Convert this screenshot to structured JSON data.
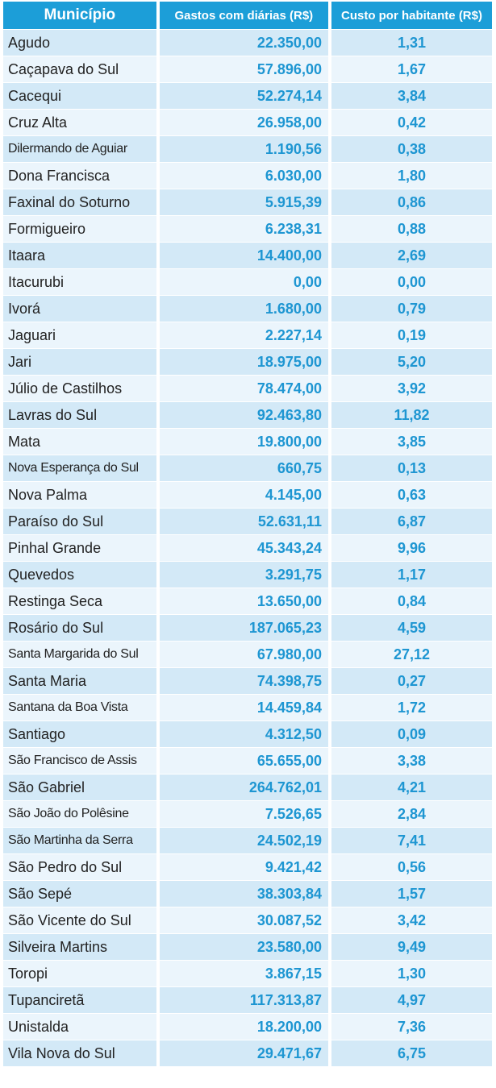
{
  "header": {
    "municipio": "Município",
    "gastos": "Gastos com diárias (R$)",
    "custo": "Custo por habitante (R$)"
  },
  "rows": [
    {
      "name": "Agudo",
      "spend": "22.350,00",
      "cost": "1,31"
    },
    {
      "name": "Caçapava do Sul",
      "spend": "57.896,00",
      "cost": "1,67"
    },
    {
      "name": "Cacequi",
      "spend": "52.274,14",
      "cost": "3,84"
    },
    {
      "name": "Cruz Alta",
      "spend": "26.958,00",
      "cost": "0,42"
    },
    {
      "name": "Dilermando de Aguiar",
      "spend": "1.190,56",
      "cost": "0,38"
    },
    {
      "name": "Dona Francisca",
      "spend": "6.030,00",
      "cost": "1,80"
    },
    {
      "name": "Faxinal do Soturno",
      "spend": "5.915,39",
      "cost": "0,86"
    },
    {
      "name": "Formigueiro",
      "spend": "6.238,31",
      "cost": "0,88"
    },
    {
      "name": "Itaara",
      "spend": "14.400,00",
      "cost": "2,69"
    },
    {
      "name": "Itacurubi",
      "spend": "0,00",
      "cost": "0,00"
    },
    {
      "name": "Ivorá",
      "spend": "1.680,00",
      "cost": "0,79"
    },
    {
      "name": "Jaguari",
      "spend": "2.227,14",
      "cost": "0,19"
    },
    {
      "name": "Jari",
      "spend": "18.975,00",
      "cost": "5,20"
    },
    {
      "name": "Júlio de Castilhos",
      "spend": "78.474,00",
      "cost": "3,92"
    },
    {
      "name": "Lavras do Sul",
      "spend": "92.463,80",
      "cost": "11,82"
    },
    {
      "name": "Mata",
      "spend": "19.800,00",
      "cost": "3,85"
    },
    {
      "name": "Nova Esperança do Sul",
      "spend": "660,75",
      "cost": "0,13"
    },
    {
      "name": "Nova Palma",
      "spend": "4.145,00",
      "cost": "0,63"
    },
    {
      "name": "Paraíso do Sul",
      "spend": "52.631,11",
      "cost": "6,87"
    },
    {
      "name": "Pinhal Grande",
      "spend": "45.343,24",
      "cost": "9,96"
    },
    {
      "name": "Quevedos",
      "spend": "3.291,75",
      "cost": "1,17"
    },
    {
      "name": "Restinga Seca",
      "spend": "13.650,00",
      "cost": "0,84"
    },
    {
      "name": "Rosário do Sul",
      "spend": "187.065,23",
      "cost": "4,59"
    },
    {
      "name": "Santa Margarida do Sul",
      "spend": "67.980,00",
      "cost": "27,12"
    },
    {
      "name": "Santa Maria",
      "spend": "74.398,75",
      "cost": "0,27"
    },
    {
      "name": "Santana da Boa Vista",
      "spend": "14.459,84",
      "cost": "1,72"
    },
    {
      "name": "Santiago",
      "spend": "4.312,50",
      "cost": "0,09"
    },
    {
      "name": "São Francisco de Assis",
      "spend": "65.655,00",
      "cost": "3,38"
    },
    {
      "name": "São Gabriel",
      "spend": "264.762,01",
      "cost": "4,21"
    },
    {
      "name": "São João do Polêsine",
      "spend": "7.526,65",
      "cost": "2,84"
    },
    {
      "name": "São Martinha da Serra",
      "spend": "24.502,19",
      "cost": "7,41"
    },
    {
      "name": "São Pedro do Sul",
      "spend": "9.421,42",
      "cost": "0,56"
    },
    {
      "name": "São Sepé",
      "spend": "38.303,84",
      "cost": "1,57"
    },
    {
      "name": "São Vicente do Sul",
      "spend": "30.087,52",
      "cost": "3,42"
    },
    {
      "name": "Silveira Martins",
      "spend": "23.580,00",
      "cost": "9,49"
    },
    {
      "name": "Toropi",
      "spend": "3.867,15",
      "cost": "1,30"
    },
    {
      "name": "Tupanciretã",
      "spend": "117.313,87",
      "cost": "4,97"
    },
    {
      "name": "Unistalda",
      "spend": "18.200,00",
      "cost": "7,36"
    },
    {
      "name": "Vila Nova do Sul",
      "spend": "29.471,67",
      "cost": "6,75"
    }
  ]
}
